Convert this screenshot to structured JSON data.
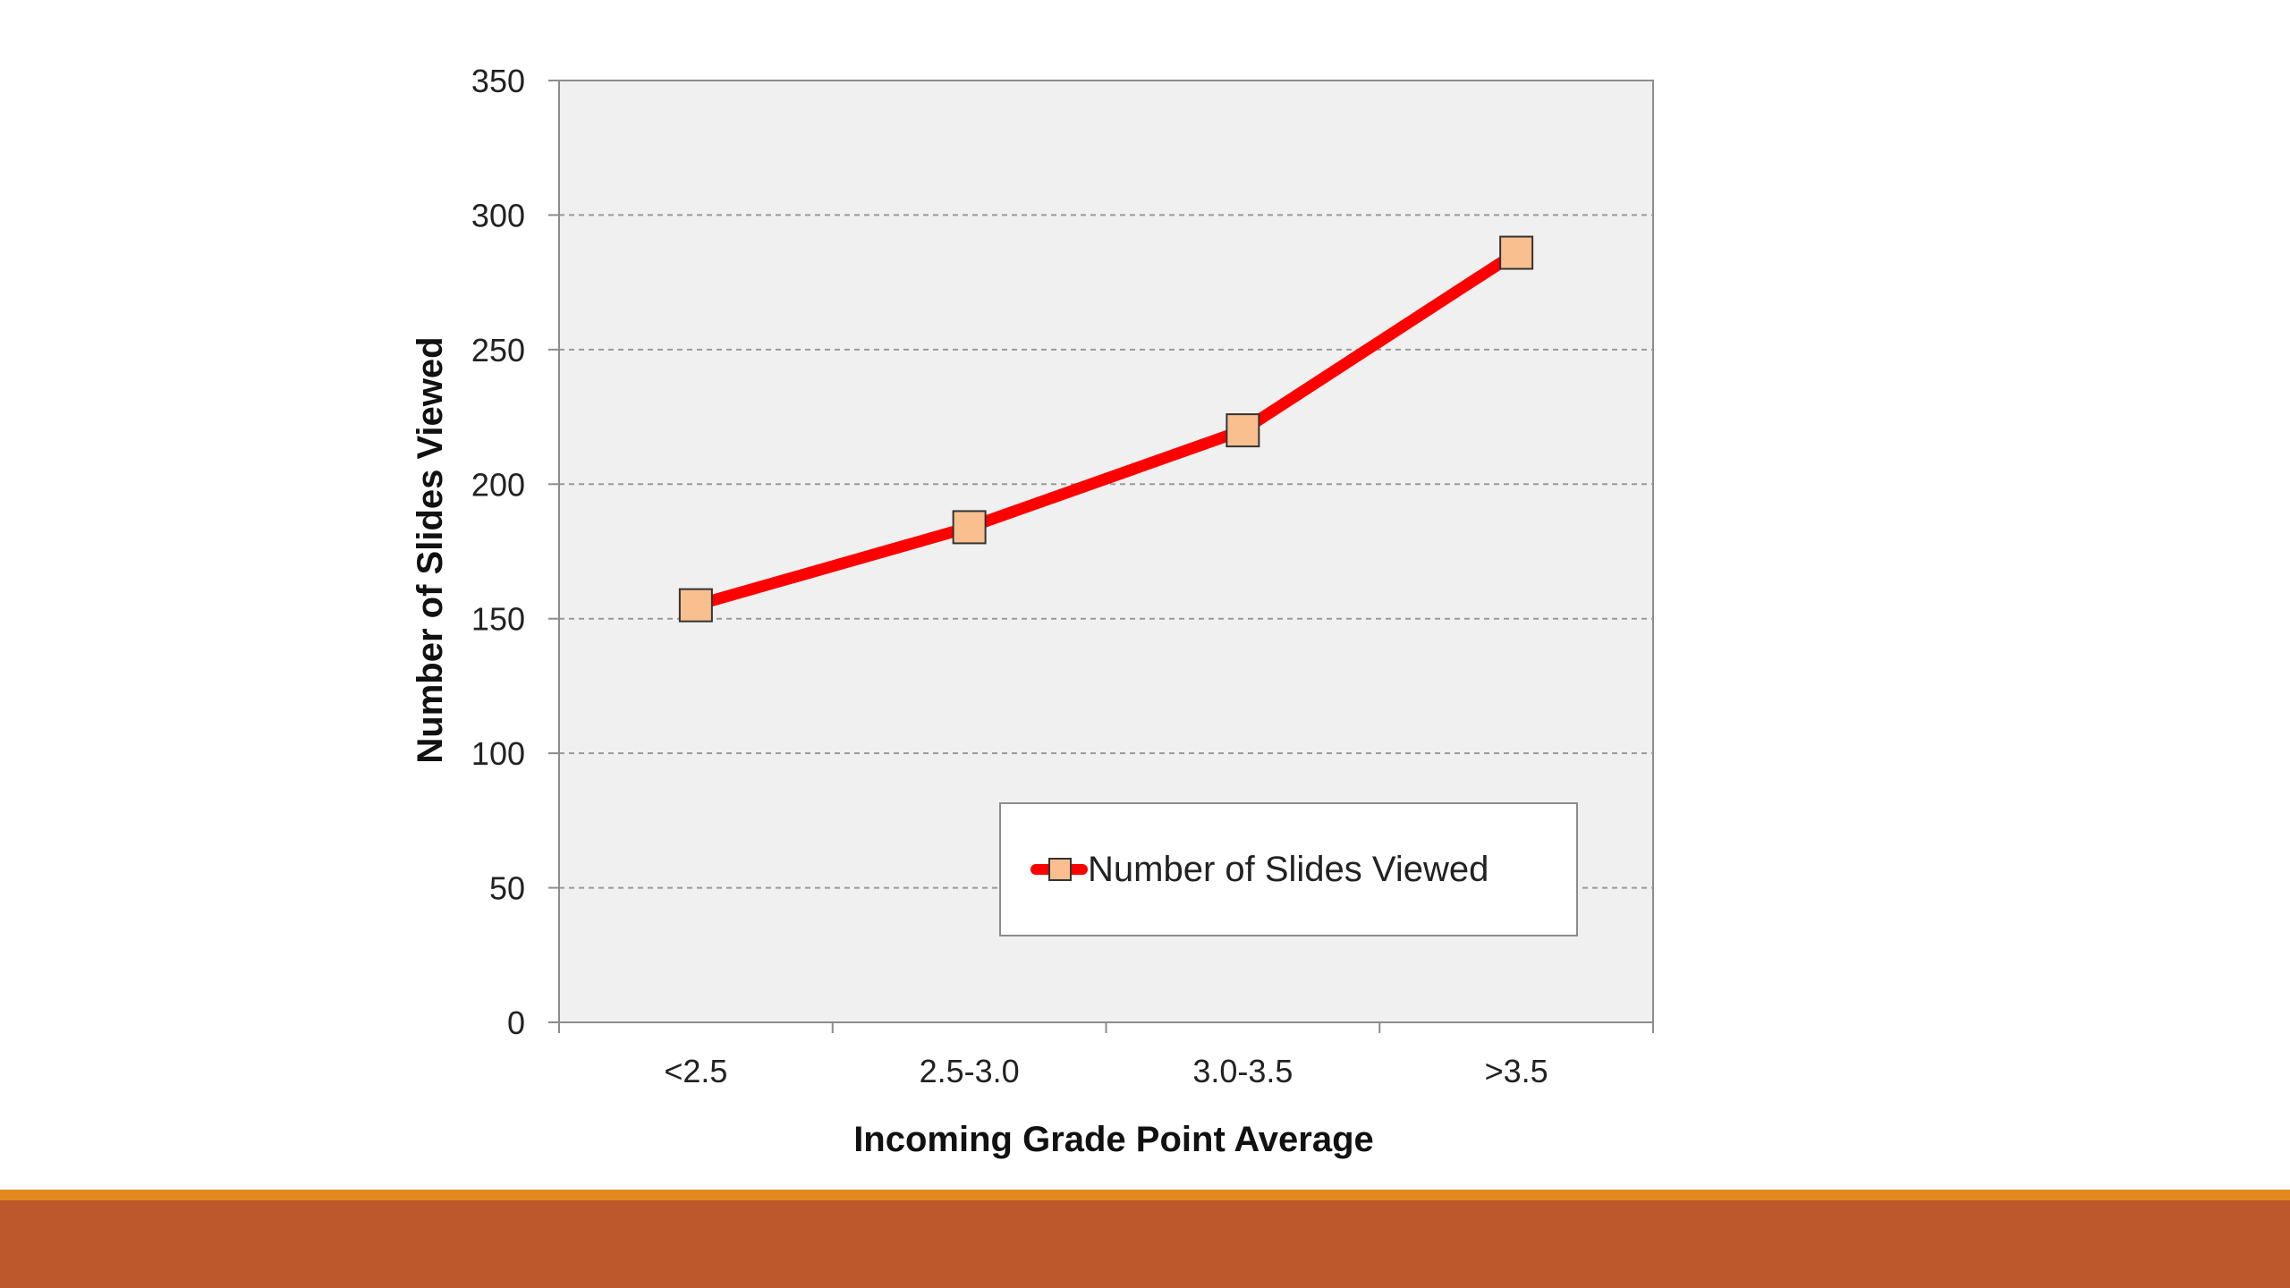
{
  "colors": {
    "plot_background": "#f0f0f0",
    "line": "#ff0000",
    "marker_fill": "#f9bf8f",
    "marker_stroke": "#333333",
    "grid": "#9a9a9a",
    "footer_stripe": "#e38a1e",
    "footer_band": "#bd582c"
  },
  "chart_data": {
    "type": "line",
    "title": "",
    "xlabel": "Incoming Grade Point Average",
    "ylabel": "Number of Slides Viewed",
    "categories": [
      "<2.5",
      "2.5-3.0",
      "3.0-3.5",
      ">3.5"
    ],
    "series": [
      {
        "name": "Number of Slides Viewed",
        "values": [
          155,
          184,
          220,
          286
        ],
        "marker": "square"
      }
    ],
    "ylim": [
      0,
      350
    ],
    "yticks": [
      0,
      50,
      100,
      150,
      200,
      250,
      300,
      350
    ],
    "grid": true,
    "legend": "bottom-right"
  }
}
